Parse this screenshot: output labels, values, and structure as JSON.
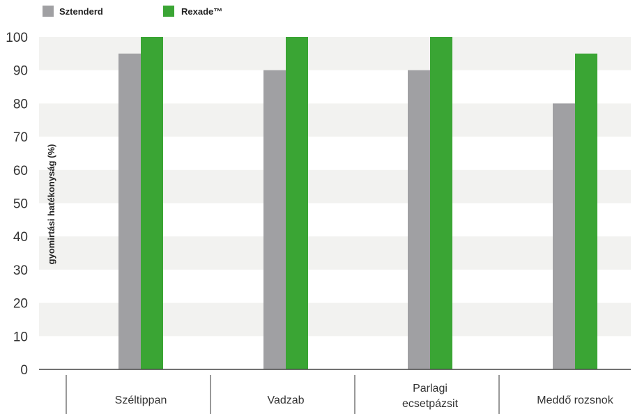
{
  "chart_data": {
    "type": "bar",
    "categories": [
      [
        "Széltippan"
      ],
      [
        "Vadzab"
      ],
      [
        "Parlagi",
        "ecsetpázsit"
      ],
      [
        "Meddő rozsnok"
      ]
    ],
    "series": [
      {
        "name": "Sztenderd",
        "color": "#a0a0a3",
        "values": [
          95,
          90,
          90,
          80
        ]
      },
      {
        "name": "Rexade™",
        "color": "#3aa534",
        "values": [
          100,
          100,
          100,
          95
        ]
      }
    ],
    "yticks": [
      "0",
      "10",
      "20",
      "30",
      "40",
      "50",
      "60",
      "70",
      "80",
      "90",
      "100"
    ],
    "ylim": [
      0,
      100
    ],
    "ylabel": "gyomirtási hatékonyság (%)",
    "grid": "alternating-bands",
    "legend_position": "top-left"
  }
}
